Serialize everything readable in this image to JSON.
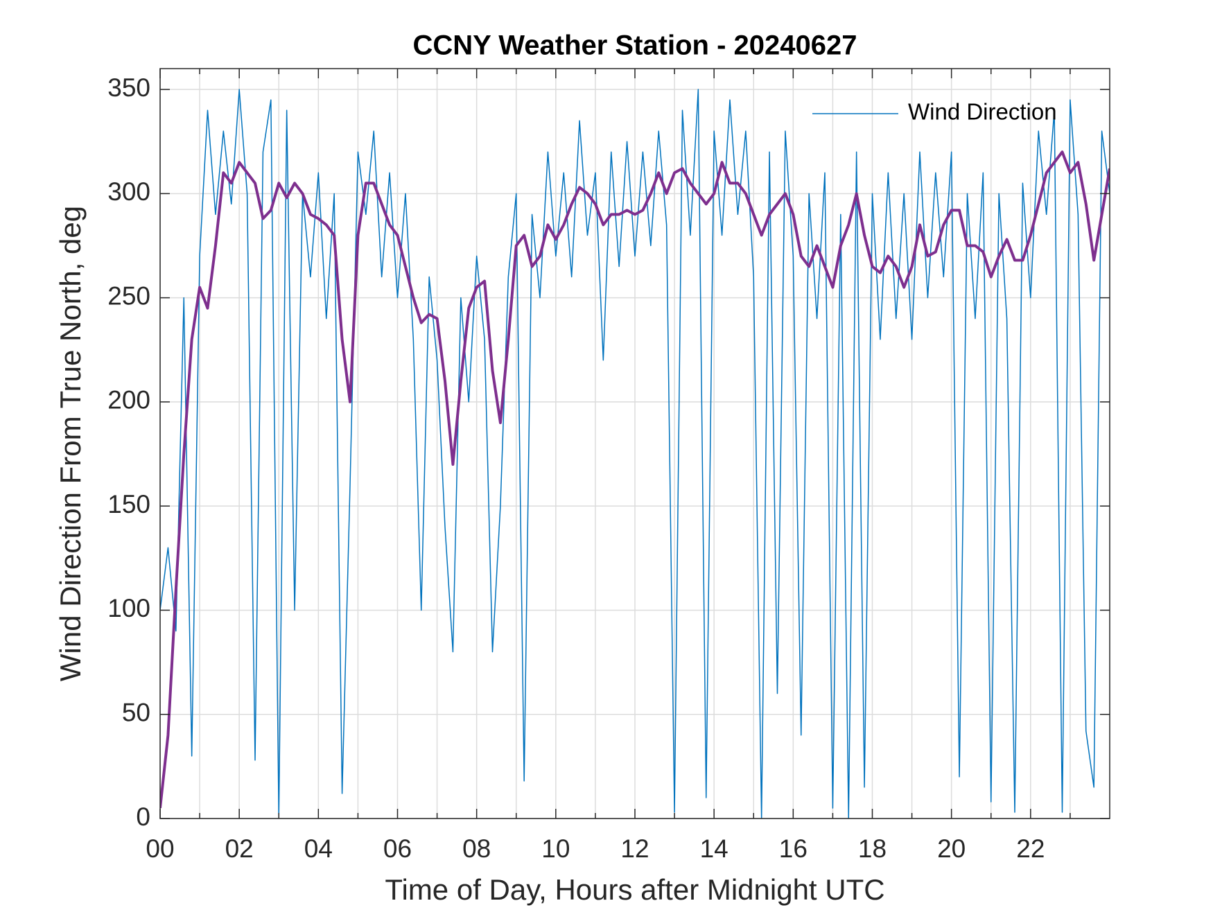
{
  "chart_data": {
    "type": "line",
    "title": "CCNY Weather Station - 20240627",
    "xlabel": "Time of Day, Hours after Midnight UTC",
    "ylabel": "Wind Direction From True North, deg",
    "x": [
      0,
      0.2,
      0.4,
      0.6,
      0.8,
      1,
      1.2,
      1.4,
      1.6,
      1.8,
      2,
      2.2,
      2.4,
      2.6,
      2.8,
      3,
      3.2,
      3.4,
      3.6,
      3.8,
      4,
      4.2,
      4.4,
      4.6,
      4.8,
      5,
      5.2,
      5.4,
      5.6,
      5.8,
      6,
      6.2,
      6.4,
      6.6,
      6.8,
      7,
      7.2,
      7.4,
      7.6,
      7.8,
      8,
      8.2,
      8.4,
      8.6,
      8.8,
      9,
      9.2,
      9.4,
      9.6,
      9.8,
      10,
      10.2,
      10.4,
      10.6,
      10.8,
      11,
      11.2,
      11.4,
      11.6,
      11.8,
      12,
      12.2,
      12.4,
      12.6,
      12.8,
      13,
      13.2,
      13.4,
      13.6,
      13.8,
      14,
      14.2,
      14.4,
      14.6,
      14.8,
      15,
      15.2,
      15.4,
      15.6,
      15.8,
      16,
      16.2,
      16.4,
      16.6,
      16.8,
      17,
      17.2,
      17.4,
      17.6,
      17.8,
      18,
      18.2,
      18.4,
      18.6,
      18.8,
      19,
      19.2,
      19.4,
      19.6,
      19.8,
      20,
      20.2,
      20.4,
      20.6,
      20.8,
      21,
      21.2,
      21.4,
      21.6,
      21.8,
      22,
      22.2,
      22.4,
      22.6,
      22.8,
      23,
      23.2,
      23.4,
      23.6,
      23.8,
      24
    ],
    "series": [
      {
        "name": "Wind Direction",
        "color": "#0072bd",
        "width": 1.5,
        "values": [
          100,
          130,
          90,
          250,
          30,
          270,
          340,
          290,
          330,
          295,
          350,
          300,
          28,
          320,
          345,
          0,
          340,
          100,
          300,
          260,
          310,
          240,
          300,
          12,
          160,
          320,
          290,
          330,
          260,
          310,
          250,
          300,
          230,
          100,
          260,
          220,
          140,
          80,
          250,
          200,
          270,
          230,
          80,
          150,
          260,
          300,
          18,
          290,
          250,
          320,
          270,
          310,
          260,
          335,
          280,
          310,
          220,
          320,
          265,
          325,
          270,
          320,
          275,
          330,
          285,
          3,
          340,
          280,
          350,
          10,
          330,
          280,
          345,
          290,
          330,
          260,
          0,
          320,
          60,
          330,
          270,
          40,
          300,
          240,
          310,
          5,
          290,
          0,
          320,
          15,
          300,
          230,
          310,
          240,
          300,
          230,
          320,
          250,
          310,
          260,
          320,
          20,
          300,
          240,
          310,
          8,
          300,
          240,
          3,
          305,
          250,
          330,
          290,
          340,
          3,
          345,
          290,
          42,
          15,
          330,
          300
        ]
      },
      {
        "color": "#7e2f8e",
        "width": 4,
        "values": [
          5,
          40,
          110,
          175,
          230,
          255,
          245,
          275,
          310,
          305,
          315,
          310,
          305,
          288,
          292,
          305,
          298,
          305,
          300,
          290,
          288,
          285,
          280,
          230,
          200,
          280,
          305,
          305,
          295,
          285,
          280,
          265,
          250,
          238,
          242,
          240,
          210,
          170,
          210,
          245,
          255,
          258,
          215,
          190,
          230,
          275,
          280,
          265,
          270,
          285,
          278,
          285,
          295,
          303,
          300,
          295,
          285,
          290,
          290,
          292,
          290,
          292,
          300,
          310,
          300,
          310,
          312,
          305,
          300,
          295,
          300,
          315,
          305,
          305,
          300,
          290,
          280,
          290,
          295,
          300,
          290,
          270,
          265,
          275,
          265,
          255,
          275,
          285,
          300,
          280,
          265,
          262,
          270,
          265,
          255,
          265,
          285,
          270,
          272,
          285,
          292,
          292,
          275,
          275,
          272,
          260,
          270,
          278,
          268,
          268,
          280,
          295,
          310,
          315,
          320,
          310,
          315,
          295,
          268,
          290,
          312
        ]
      }
    ],
    "xlim": [
      0,
      24
    ],
    "xticks": [
      {
        "value": 0,
        "label": "00"
      },
      {
        "value": 2,
        "label": "02"
      },
      {
        "value": 4,
        "label": "04"
      },
      {
        "value": 6,
        "label": "06"
      },
      {
        "value": 8,
        "label": "08"
      },
      {
        "value": 10,
        "label": "10"
      },
      {
        "value": 12,
        "label": "12"
      },
      {
        "value": 14,
        "label": "14"
      },
      {
        "value": 16,
        "label": "16"
      },
      {
        "value": 18,
        "label": "18"
      },
      {
        "value": 20,
        "label": "20"
      },
      {
        "value": 22,
        "label": "22"
      }
    ],
    "x_minor_ticks": [
      1,
      3,
      5,
      7,
      9,
      11,
      13,
      15,
      17,
      19,
      21,
      23
    ],
    "ylim": [
      0,
      360
    ],
    "yticks": [
      0,
      50,
      100,
      150,
      200,
      250,
      300,
      350
    ],
    "grid": true,
    "legend": "upper right"
  }
}
